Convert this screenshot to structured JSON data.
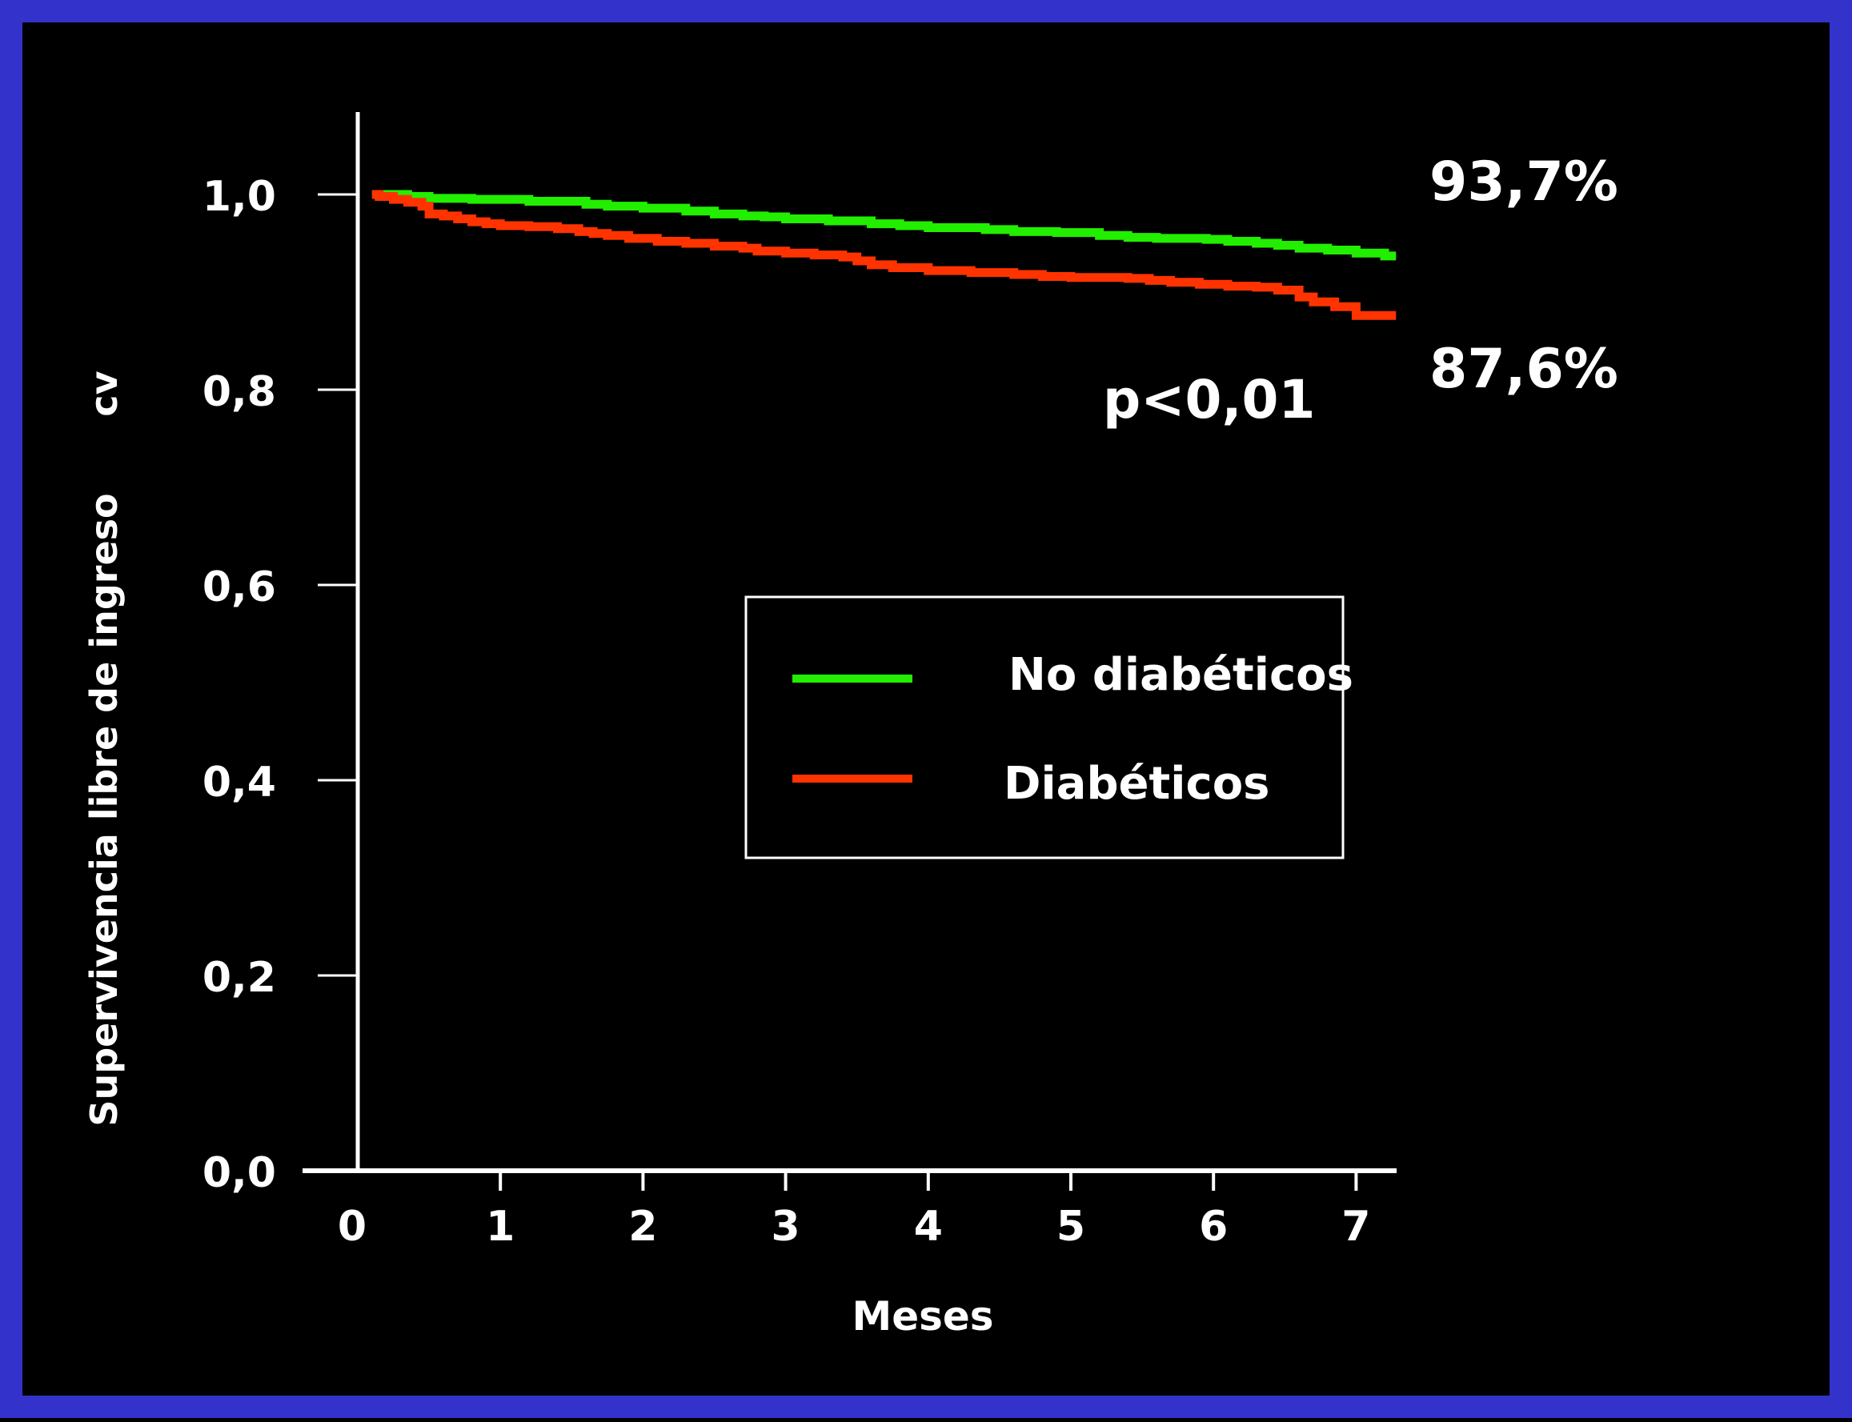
{
  "colors": {
    "background": "#000000",
    "border": "#3333cc",
    "axis": "#ffffff",
    "text": "#ffffff"
  },
  "chart_data": {
    "type": "line",
    "subtype": "kaplan-meier-step",
    "title": "",
    "xlabel": "Meses",
    "ylabel": "Supervivencia libre de ingreso",
    "ylabel_suffix": "cv",
    "xlim": [
      0,
      7.3
    ],
    "ylim": [
      0,
      1.0
    ],
    "x_ticks": [
      0,
      1,
      2,
      3,
      4,
      5,
      6,
      7
    ],
    "x_tick_labels": [
      "0",
      "1",
      "2",
      "3",
      "4",
      "5",
      "6",
      "7"
    ],
    "y_ticks": [
      0.0,
      0.2,
      0.4,
      0.6,
      0.8,
      1.0
    ],
    "y_tick_labels": [
      "0,0",
      "0,2",
      "0,4",
      "0,6",
      "0,8",
      "1,0"
    ],
    "grid": false,
    "legend_position": "center-right",
    "series": [
      {
        "name": "No diabéticos",
        "color": "#22ee00",
        "end_label": "93,7%",
        "x": [
          0.1,
          0.35,
          0.5,
          0.8,
          1.2,
          1.6,
          1.75,
          2.0,
          2.3,
          2.5,
          2.7,
          2.85,
          3.0,
          3.3,
          3.6,
          3.8,
          4.0,
          4.4,
          4.6,
          4.9,
          5.2,
          5.4,
          5.6,
          5.8,
          5.95,
          6.1,
          6.3,
          6.45,
          6.6,
          6.8,
          7.0,
          7.2,
          7.28
        ],
        "y": [
          1.0,
          0.998,
          0.996,
          0.995,
          0.993,
          0.99,
          0.988,
          0.986,
          0.983,
          0.98,
          0.978,
          0.977,
          0.975,
          0.973,
          0.97,
          0.968,
          0.966,
          0.964,
          0.962,
          0.961,
          0.958,
          0.956,
          0.955,
          0.955,
          0.954,
          0.952,
          0.95,
          0.948,
          0.945,
          0.943,
          0.94,
          0.937,
          0.937
        ]
      },
      {
        "name": "Diabéticos",
        "color": "#ff3300",
        "end_label": "87,6%",
        "x": [
          0.1,
          0.15,
          0.25,
          0.35,
          0.45,
          0.5,
          0.6,
          0.7,
          0.8,
          0.9,
          1.0,
          1.2,
          1.4,
          1.55,
          1.65,
          1.75,
          1.9,
          2.1,
          2.3,
          2.5,
          2.7,
          2.8,
          3.0,
          3.2,
          3.4,
          3.5,
          3.6,
          3.75,
          4.0,
          4.3,
          4.6,
          4.8,
          5.0,
          5.2,
          5.4,
          5.55,
          5.7,
          5.9,
          6.1,
          6.3,
          6.45,
          6.6,
          6.7,
          6.85,
          7.0,
          7.28
        ],
        "y": [
          1.0,
          0.998,
          0.995,
          0.992,
          0.988,
          0.98,
          0.978,
          0.975,
          0.972,
          0.97,
          0.968,
          0.967,
          0.965,
          0.962,
          0.96,
          0.958,
          0.955,
          0.952,
          0.95,
          0.947,
          0.945,
          0.942,
          0.94,
          0.938,
          0.936,
          0.932,
          0.928,
          0.925,
          0.922,
          0.92,
          0.918,
          0.916,
          0.915,
          0.915,
          0.914,
          0.912,
          0.91,
          0.908,
          0.906,
          0.905,
          0.902,
          0.895,
          0.89,
          0.885,
          0.876,
          0.876
        ]
      }
    ],
    "annotations": [
      {
        "text": "p<0,01"
      }
    ]
  }
}
